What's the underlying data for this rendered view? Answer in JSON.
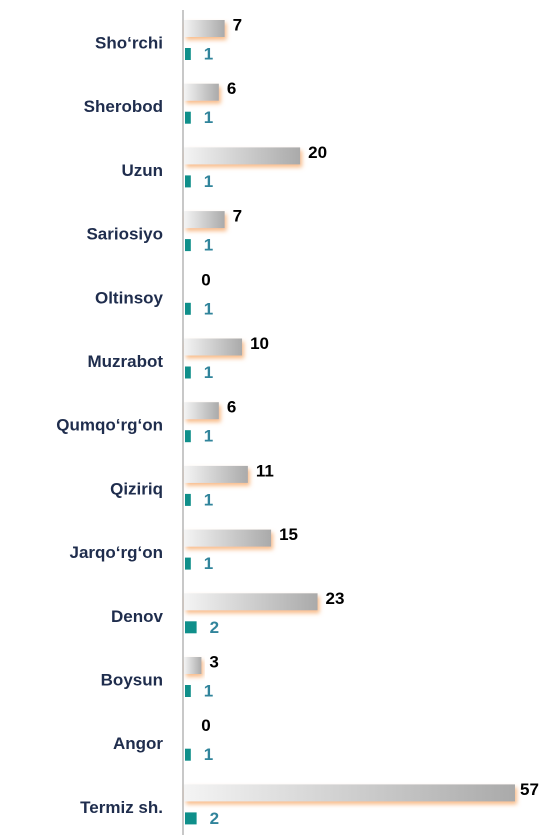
{
  "chart_data": {
    "type": "bar",
    "orientation": "horizontal",
    "categories": [
      "Sho‘rchi",
      "Sherobod",
      "Uzun",
      "Sariosiyo",
      "Oltinsoy",
      "Muzrabot",
      "Qumqo‘rg‘on",
      "Qiziriq",
      "Jarqo‘rg‘on",
      "Denov",
      "Boysun",
      "Angor",
      "Termiz sh."
    ],
    "series": [
      {
        "color": "#b3b3b3",
        "values": [
          7,
          6,
          20,
          7,
          0,
          10,
          6,
          11,
          15,
          23,
          3,
          0,
          57
        ]
      },
      {
        "color": "#0f8f8a",
        "values": [
          1,
          1,
          1,
          1,
          1,
          1,
          1,
          1,
          1,
          2,
          1,
          1,
          2
        ]
      }
    ],
    "xlim": [
      0,
      57
    ]
  }
}
